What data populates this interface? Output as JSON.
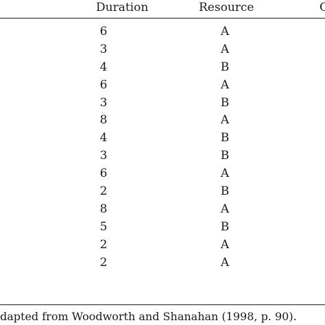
{
  "table": {
    "columns": {
      "duration": "Duration",
      "resource": "Resource",
      "cut_off": "C"
    },
    "rows": [
      {
        "duration": "6",
        "resource": "A"
      },
      {
        "duration": "3",
        "resource": "A"
      },
      {
        "duration": "4",
        "resource": "B"
      },
      {
        "duration": "6",
        "resource": "A"
      },
      {
        "duration": "3",
        "resource": "B"
      },
      {
        "duration": "8",
        "resource": "A"
      },
      {
        "duration": "4",
        "resource": "B"
      },
      {
        "duration": "3",
        "resource": "B"
      },
      {
        "duration": "6",
        "resource": "A"
      },
      {
        "duration": "2",
        "resource": "B"
      },
      {
        "duration": "8",
        "resource": "A"
      },
      {
        "duration": "5",
        "resource": "B"
      },
      {
        "duration": "2",
        "resource": "A"
      },
      {
        "duration": "2",
        "resource": "A"
      }
    ]
  },
  "footnote": "dapted from Woodworth and Shanahan (1998, p. 90)."
}
